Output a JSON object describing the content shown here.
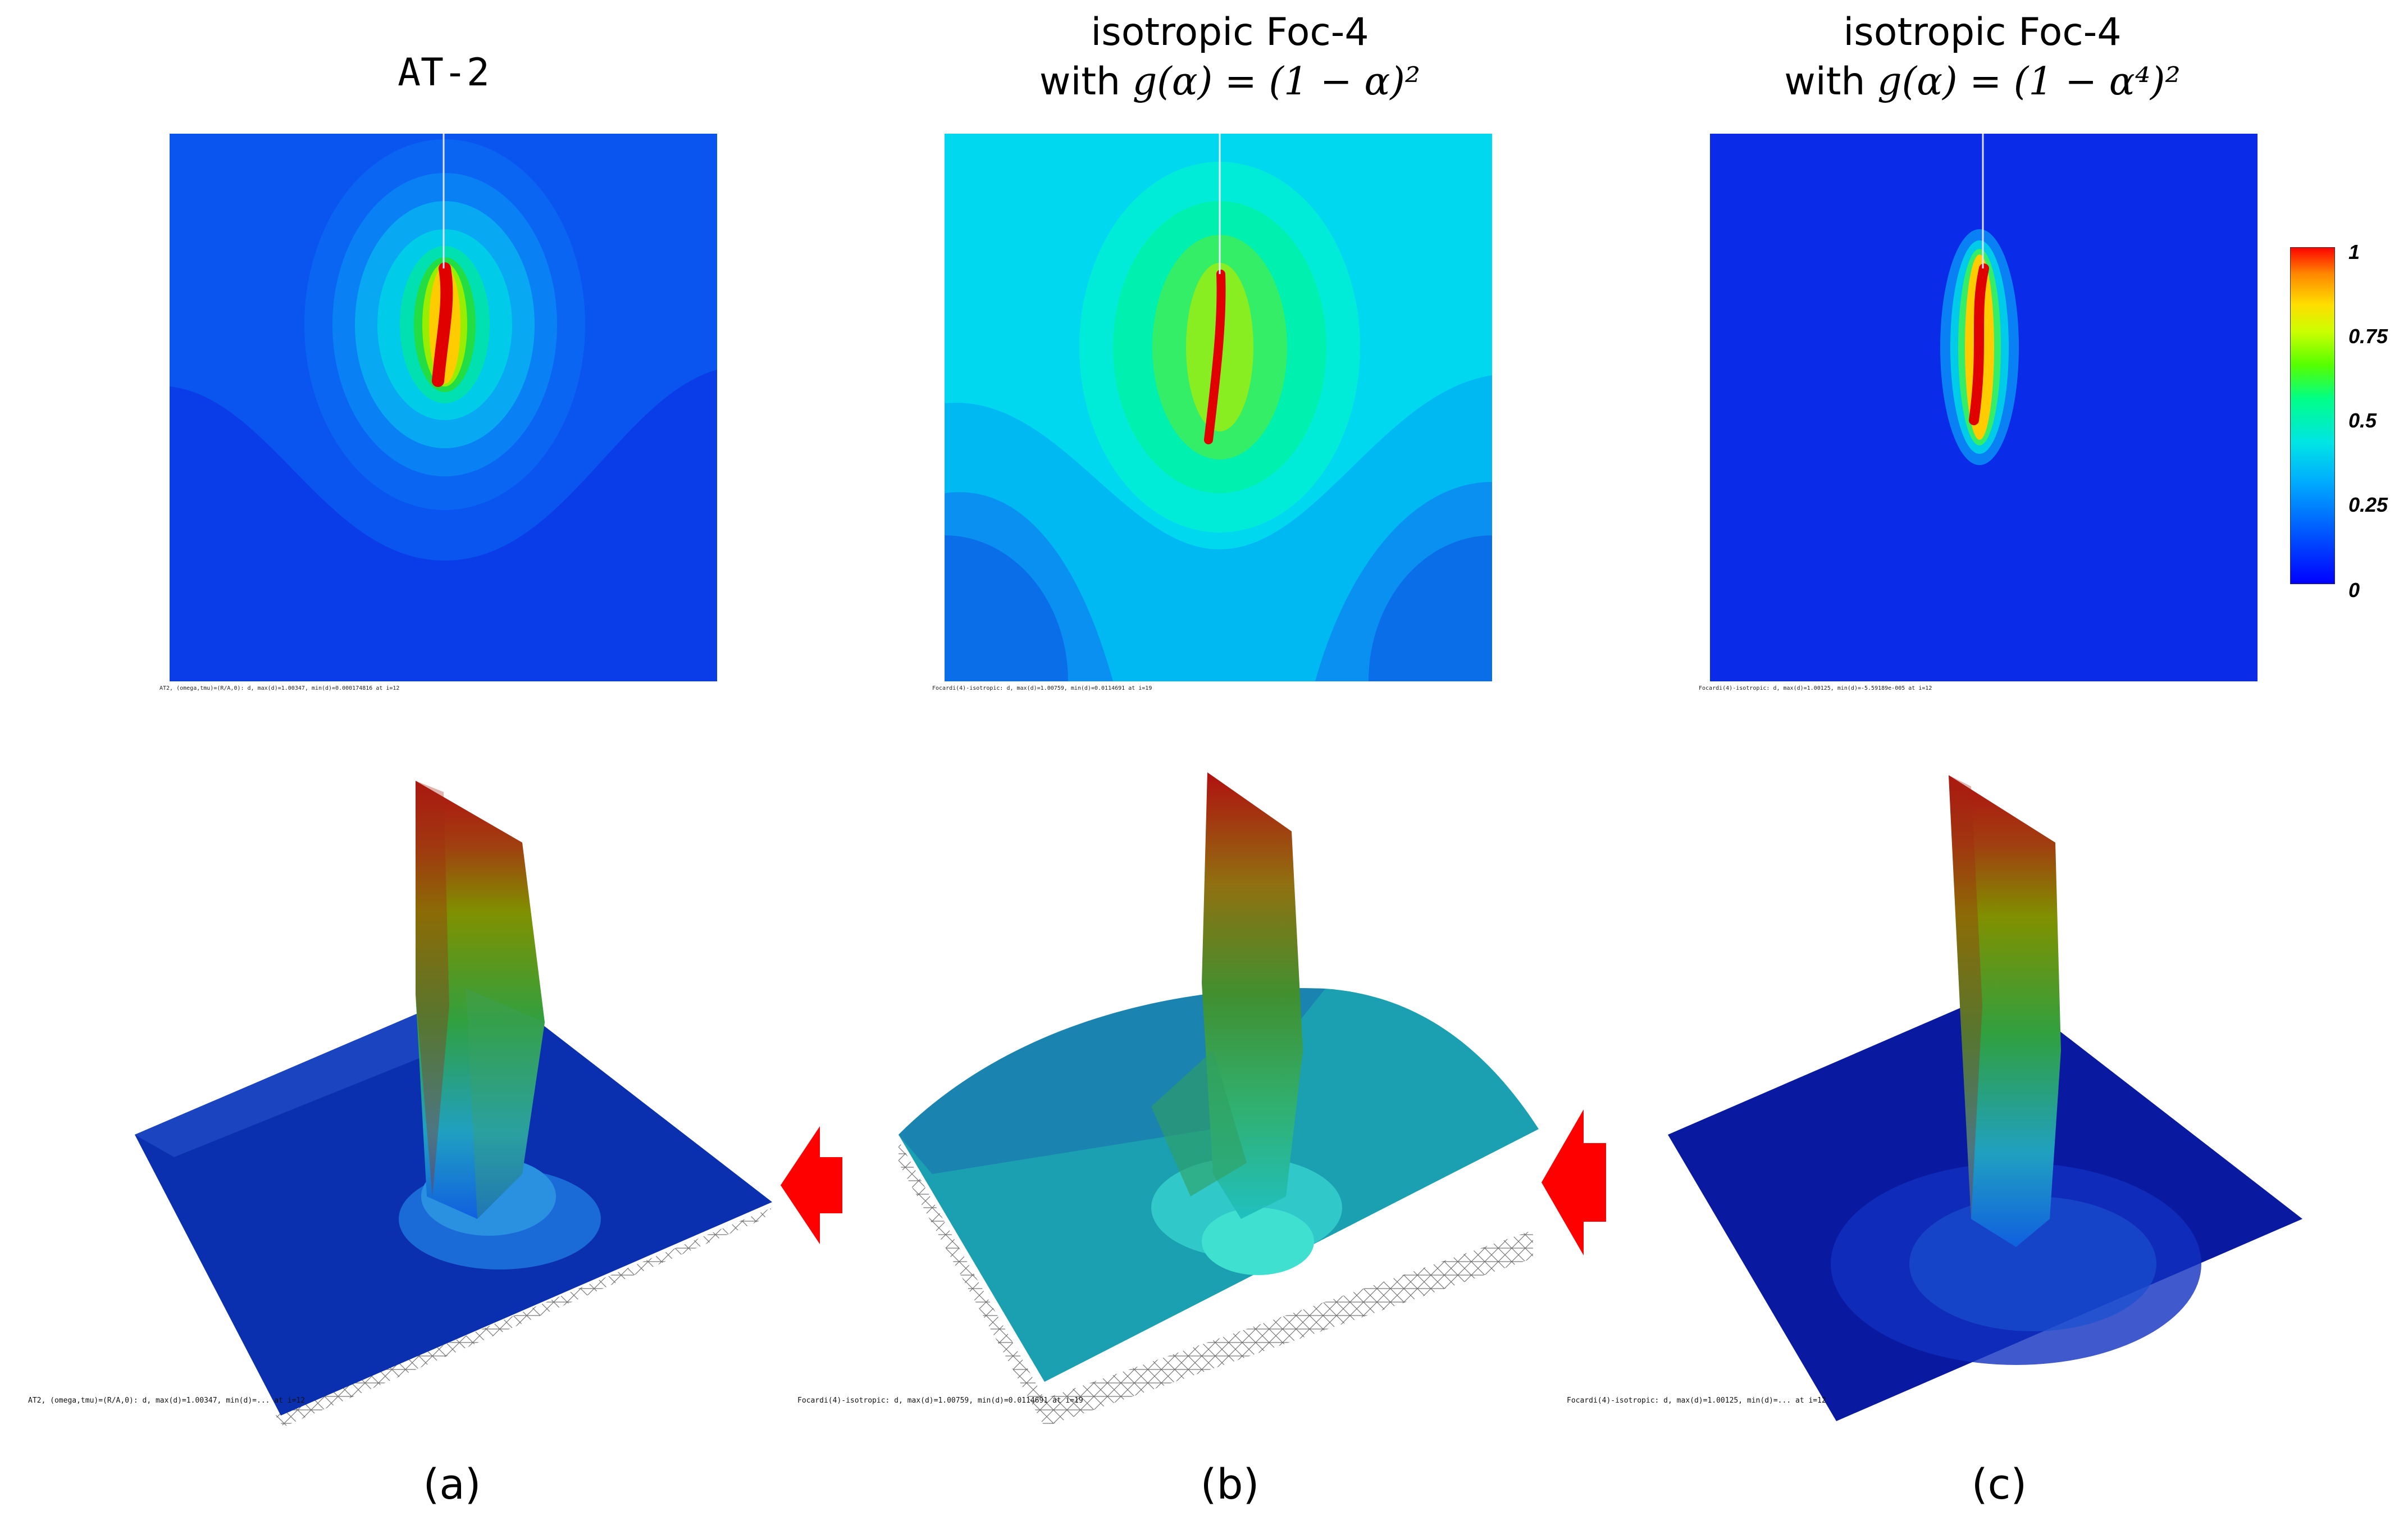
{
  "panels": [
    {
      "id": "a",
      "title_line1": "AT-2",
      "title_line2": "",
      "title_line2_prefix": "",
      "title_line2_formula": "",
      "caption_2d": "AT2, (omega,tmu)=(R/A,0):  d, max(d)=1.00347, min(d)=0.000174816 at i=12",
      "caption_3d": "AT2, (omega,tmu)=(R/A,0):  d, max(d)=1.00347, min(d)=... at i=12",
      "label": "(a)"
    },
    {
      "id": "b",
      "title_line1": "isotropic Foc-4",
      "title_line2_prefix": "with ",
      "title_line2_formula": "g(α) = (1 − α)²",
      "caption_2d": "Focardi(4)-isotropic:  d, max(d)=1.00759, min(d)=0.0114691 at i=19",
      "caption_3d": "Focardi(4)-isotropic:  d, max(d)=1.00759, min(d)=0.0114691 at i=19",
      "label": "(b)"
    },
    {
      "id": "c",
      "title_line1": "isotropic Foc-4",
      "title_line2_prefix": "with ",
      "title_line2_formula": "g(α) = (1 − α⁴)²",
      "caption_2d": "Focardi(4)-isotropic:  d, max(d)=1.00125, min(d)=-5.59189e-005 at i=12",
      "caption_3d": "Focardi(4)-isotropic:  d, max(d)=1.00125, min(d)=... at i=12",
      "label": "(c)"
    }
  ],
  "colorbar": {
    "ticks": [
      "1",
      "0.75",
      "0.5",
      "0.25",
      "0"
    ],
    "colors": [
      "#0000ff",
      "#0055ff",
      "#00aaff",
      "#00e5e5",
      "#00ff88",
      "#55ff00",
      "#ccff00",
      "#ffdd00",
      "#ff8800",
      "#ff0000"
    ]
  },
  "field_colors": {
    "deep_blue": "#0b2be8",
    "cyan_bg": "#00d8f0",
    "crack_red": "#e00000",
    "arrow_red": "#ff0000"
  }
}
